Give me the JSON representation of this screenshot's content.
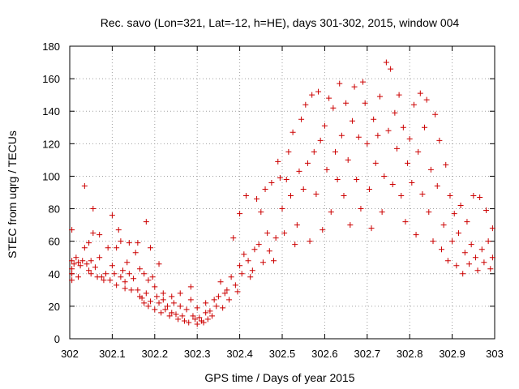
{
  "chart_data": {
    "type": "scatter",
    "title": "Rec. savo (Lon=321, Lat=-12, h=HE), days 301-302, 2015, window 004",
    "xlabel": "GPS time / Days of year 2015",
    "ylabel": "STEC from uqrg / TECUs",
    "xlim": [
      302,
      303
    ],
    "ylim": [
      0,
      180
    ],
    "xticks": [
      "302",
      "302.1",
      "302.2",
      "302.3",
      "302.4",
      "302.5",
      "302.6",
      "302.7",
      "302.8",
      "302.9",
      "303"
    ],
    "yticks": [
      "0",
      "20",
      "40",
      "60",
      "80",
      "100",
      "120",
      "140",
      "160",
      "180"
    ],
    "grid": true,
    "marker": "+",
    "color": "#cc0000",
    "points": [
      [
        302.005,
        67
      ],
      [
        302.005,
        48
      ],
      [
        302.005,
        43
      ],
      [
        302.005,
        40
      ],
      [
        302.005,
        36
      ],
      [
        302.01,
        46
      ],
      [
        302.015,
        50
      ],
      [
        302.02,
        47
      ],
      [
        302.02,
        38
      ],
      [
        302.025,
        45
      ],
      [
        302.03,
        48
      ],
      [
        302.035,
        56
      ],
      [
        302.035,
        94
      ],
      [
        302.04,
        46
      ],
      [
        302.045,
        59
      ],
      [
        302.045,
        42
      ],
      [
        302.05,
        48
      ],
      [
        302.05,
        40
      ],
      [
        302.055,
        80
      ],
      [
        302.055,
        65
      ],
      [
        302.06,
        44
      ],
      [
        302.065,
        38
      ],
      [
        302.07,
        64
      ],
      [
        302.07,
        50
      ],
      [
        302.075,
        38
      ],
      [
        302.08,
        36
      ],
      [
        302.085,
        40
      ],
      [
        302.09,
        56
      ],
      [
        302.095,
        36
      ],
      [
        302.1,
        76
      ],
      [
        302.1,
        45
      ],
      [
        302.105,
        40
      ],
      [
        302.11,
        56
      ],
      [
        302.11,
        33
      ],
      [
        302.115,
        67
      ],
      [
        302.12,
        60
      ],
      [
        302.12,
        38
      ],
      [
        302.125,
        42
      ],
      [
        302.13,
        35
      ],
      [
        302.13,
        31
      ],
      [
        302.135,
        47
      ],
      [
        302.14,
        59
      ],
      [
        302.14,
        40
      ],
      [
        302.145,
        30
      ],
      [
        302.15,
        37
      ],
      [
        302.155,
        53
      ],
      [
        302.16,
        59
      ],
      [
        302.16,
        30
      ],
      [
        302.165,
        43
      ],
      [
        302.165,
        26
      ],
      [
        302.17,
        25
      ],
      [
        302.175,
        40
      ],
      [
        302.175,
        22
      ],
      [
        302.18,
        72
      ],
      [
        302.18,
        28
      ],
      [
        302.185,
        36
      ],
      [
        302.185,
        20
      ],
      [
        302.19,
        56
      ],
      [
        302.19,
        23
      ],
      [
        302.195,
        38
      ],
      [
        302.2,
        32
      ],
      [
        302.2,
        18
      ],
      [
        302.205,
        26
      ],
      [
        302.21,
        22
      ],
      [
        302.21,
        46
      ],
      [
        302.215,
        16
      ],
      [
        302.22,
        24
      ],
      [
        302.22,
        28
      ],
      [
        302.225,
        18
      ],
      [
        302.23,
        20
      ],
      [
        302.235,
        14
      ],
      [
        302.24,
        26
      ],
      [
        302.24,
        16
      ],
      [
        302.245,
        22
      ],
      [
        302.25,
        15
      ],
      [
        302.255,
        12
      ],
      [
        302.26,
        20
      ],
      [
        302.26,
        28
      ],
      [
        302.265,
        14
      ],
      [
        302.27,
        11
      ],
      [
        302.275,
        18
      ],
      [
        302.28,
        10
      ],
      [
        302.285,
        24
      ],
      [
        302.285,
        32
      ],
      [
        302.29,
        14
      ],
      [
        302.295,
        12
      ],
      [
        302.3,
        9
      ],
      [
        302.3,
        19
      ],
      [
        302.305,
        13
      ],
      [
        302.31,
        11
      ],
      [
        302.315,
        10
      ],
      [
        302.32,
        16
      ],
      [
        302.32,
        22
      ],
      [
        302.325,
        12
      ],
      [
        302.33,
        17
      ],
      [
        302.335,
        14
      ],
      [
        302.34,
        24
      ],
      [
        302.345,
        20
      ],
      [
        302.35,
        26
      ],
      [
        302.355,
        35
      ],
      [
        302.36,
        19
      ],
      [
        302.365,
        28
      ],
      [
        302.37,
        30
      ],
      [
        302.375,
        24
      ],
      [
        302.38,
        38
      ],
      [
        302.385,
        62
      ],
      [
        302.39,
        33
      ],
      [
        302.395,
        29
      ],
      [
        302.4,
        45
      ],
      [
        302.4,
        77
      ],
      [
        302.405,
        40
      ],
      [
        302.41,
        52
      ],
      [
        302.415,
        88
      ],
      [
        302.42,
        48
      ],
      [
        302.425,
        38
      ],
      [
        302.43,
        42
      ],
      [
        302.435,
        55
      ],
      [
        302.44,
        86
      ],
      [
        302.445,
        58
      ],
      [
        302.45,
        78
      ],
      [
        302.455,
        47
      ],
      [
        302.46,
        92
      ],
      [
        302.465,
        65
      ],
      [
        302.47,
        54
      ],
      [
        302.475,
        96
      ],
      [
        302.48,
        48
      ],
      [
        302.485,
        62
      ],
      [
        302.49,
        109
      ],
      [
        302.495,
        99
      ],
      [
        302.5,
        80
      ],
      [
        302.505,
        65
      ],
      [
        302.51,
        98
      ],
      [
        302.515,
        115
      ],
      [
        302.52,
        88
      ],
      [
        302.525,
        127
      ],
      [
        302.53,
        58
      ],
      [
        302.535,
        70
      ],
      [
        302.54,
        103
      ],
      [
        302.545,
        135
      ],
      [
        302.55,
        92
      ],
      [
        302.555,
        144
      ],
      [
        302.56,
        108
      ],
      [
        302.565,
        60
      ],
      [
        302.57,
        150
      ],
      [
        302.575,
        115
      ],
      [
        302.58,
        89
      ],
      [
        302.585,
        152
      ],
      [
        302.59,
        122
      ],
      [
        302.595,
        67
      ],
      [
        302.6,
        131
      ],
      [
        302.605,
        104
      ],
      [
        302.61,
        148
      ],
      [
        302.615,
        78
      ],
      [
        302.62,
        142
      ],
      [
        302.625,
        115
      ],
      [
        302.63,
        98
      ],
      [
        302.635,
        157
      ],
      [
        302.64,
        125
      ],
      [
        302.645,
        88
      ],
      [
        302.65,
        145
      ],
      [
        302.655,
        110
      ],
      [
        302.66,
        70
      ],
      [
        302.665,
        134
      ],
      [
        302.67,
        155
      ],
      [
        302.675,
        98
      ],
      [
        302.68,
        124
      ],
      [
        302.685,
        80
      ],
      [
        302.69,
        158
      ],
      [
        302.695,
        145
      ],
      [
        302.7,
        120
      ],
      [
        302.705,
        92
      ],
      [
        302.71,
        68
      ],
      [
        302.715,
        135
      ],
      [
        302.72,
        108
      ],
      [
        302.725,
        125
      ],
      [
        302.73,
        149
      ],
      [
        302.735,
        78
      ],
      [
        302.74,
        100
      ],
      [
        302.745,
        170
      ],
      [
        302.75,
        128
      ],
      [
        302.755,
        166
      ],
      [
        302.76,
        95
      ],
      [
        302.765,
        139
      ],
      [
        302.77,
        117
      ],
      [
        302.775,
        150
      ],
      [
        302.78,
        88
      ],
      [
        302.785,
        130
      ],
      [
        302.79,
        72
      ],
      [
        302.795,
        108
      ],
      [
        302.8,
        123
      ],
      [
        302.805,
        96
      ],
      [
        302.81,
        144
      ],
      [
        302.815,
        64
      ],
      [
        302.82,
        115
      ],
      [
        302.825,
        151
      ],
      [
        302.83,
        89
      ],
      [
        302.835,
        130
      ],
      [
        302.84,
        147
      ],
      [
        302.845,
        78
      ],
      [
        302.85,
        104
      ],
      [
        302.855,
        60
      ],
      [
        302.86,
        138
      ],
      [
        302.865,
        94
      ],
      [
        302.87,
        122
      ],
      [
        302.875,
        55
      ],
      [
        302.88,
        70
      ],
      [
        302.885,
        107
      ],
      [
        302.89,
        48
      ],
      [
        302.895,
        88
      ],
      [
        302.9,
        60
      ],
      [
        302.905,
        77
      ],
      [
        302.91,
        45
      ],
      [
        302.915,
        65
      ],
      [
        302.92,
        82
      ],
      [
        302.925,
        40
      ],
      [
        302.93,
        53
      ],
      [
        302.935,
        72
      ],
      [
        302.94,
        46
      ],
      [
        302.945,
        58
      ],
      [
        302.95,
        88
      ],
      [
        302.955,
        50
      ],
      [
        302.96,
        42
      ],
      [
        302.965,
        87
      ],
      [
        302.97,
        55
      ],
      [
        302.975,
        47
      ],
      [
        302.98,
        79
      ],
      [
        302.985,
        60
      ],
      [
        302.99,
        43
      ],
      [
        302.995,
        68
      ],
      [
        302.995,
        50
      ]
    ]
  }
}
